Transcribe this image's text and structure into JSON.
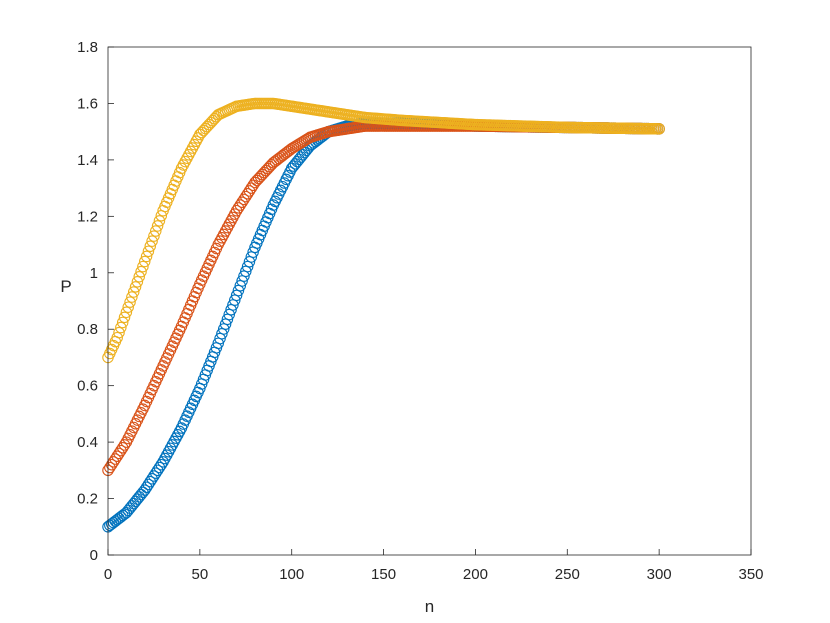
{
  "chart_data": {
    "type": "scatter",
    "title": "",
    "xlabel": "n",
    "ylabel": "P",
    "xlim": [
      0,
      350
    ],
    "ylim": [
      0,
      1.8
    ],
    "xticks": [
      "0",
      "50",
      "100",
      "150",
      "200",
      "250",
      "300",
      "350"
    ],
    "yticks": [
      "0",
      "0.2",
      "0.4",
      "0.6",
      "0.8",
      "1",
      "1.2",
      "1.4",
      "1.6",
      "1.8"
    ],
    "grid": false,
    "legend": "none",
    "marker": "open-circle",
    "series": [
      {
        "color": "#0072BD",
        "x": [
          0,
          10,
          20,
          30,
          40,
          50,
          60,
          70,
          80,
          90,
          100,
          110,
          120,
          130,
          140,
          150,
          175,
          200,
          250,
          300
        ],
        "values": [
          0.1,
          0.15,
          0.23,
          0.33,
          0.45,
          0.59,
          0.75,
          0.92,
          1.09,
          1.24,
          1.37,
          1.45,
          1.5,
          1.52,
          1.53,
          1.53,
          1.53,
          1.52,
          1.515,
          1.51
        ]
      },
      {
        "color": "#D95319",
        "x": [
          0,
          10,
          20,
          30,
          40,
          50,
          60,
          70,
          80,
          90,
          100,
          110,
          120,
          130,
          140,
          150,
          175,
          200,
          250,
          300
        ],
        "values": [
          0.3,
          0.4,
          0.53,
          0.67,
          0.81,
          0.96,
          1.1,
          1.22,
          1.32,
          1.39,
          1.44,
          1.48,
          1.5,
          1.51,
          1.52,
          1.52,
          1.52,
          1.52,
          1.515,
          1.51
        ]
      },
      {
        "color": "#EDB120",
        "x": [
          0,
          5,
          10,
          15,
          20,
          25,
          30,
          40,
          50,
          60,
          70,
          80,
          90,
          100,
          110,
          120,
          140,
          160,
          200,
          250,
          300
        ],
        "values": [
          0.7,
          0.77,
          0.86,
          0.95,
          1.04,
          1.13,
          1.22,
          1.37,
          1.49,
          1.56,
          1.59,
          1.6,
          1.6,
          1.59,
          1.58,
          1.57,
          1.55,
          1.54,
          1.525,
          1.515,
          1.51
        ]
      }
    ]
  }
}
